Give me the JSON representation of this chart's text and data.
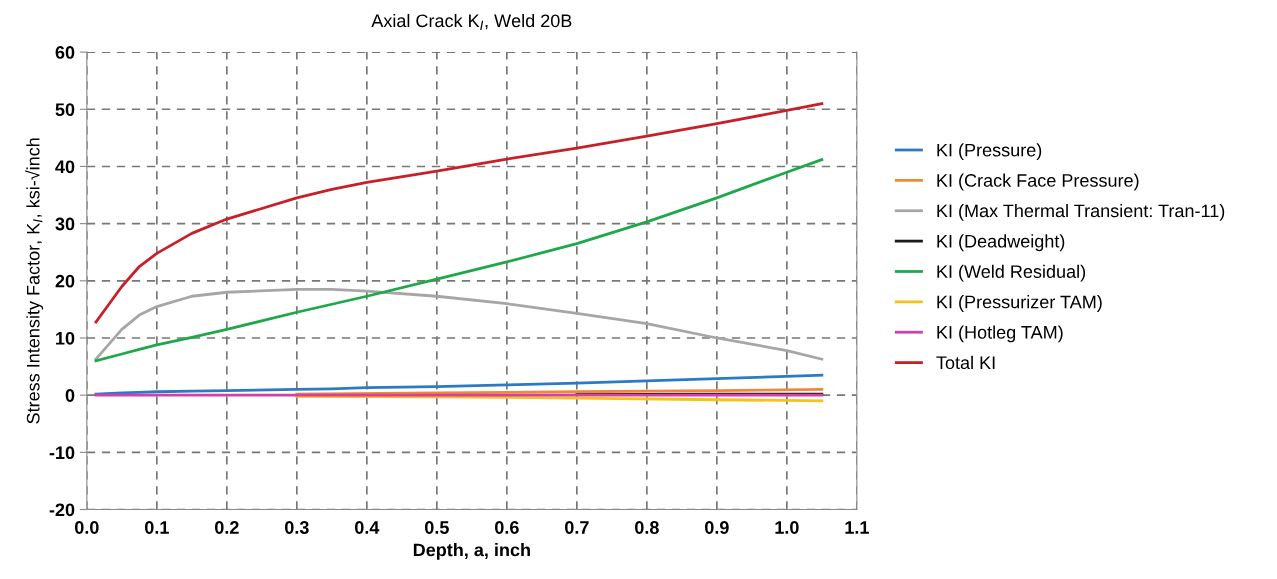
{
  "chart_data": {
    "type": "line",
    "title": "Axial Crack K$_{I}$, Weld 20B",
    "xlabel": "Depth, a, inch",
    "ylabel": "Stress Intensity Factor, K$_{I}$, ksi-√inch",
    "x": [
      0.013,
      0.05,
      0.075,
      0.1,
      0.15,
      0.2,
      0.3,
      0.35,
      0.4,
      0.5,
      0.6,
      0.7,
      0.8,
      0.9,
      1.0,
      1.05
    ],
    "series": [
      {
        "name": "KI (Pressure)",
        "color": "#2a7bc4",
        "values": [
          0.2,
          0.4,
          0.5,
          0.6,
          0.7,
          0.8,
          1.0,
          1.1,
          1.3,
          1.5,
          1.8,
          2.1,
          2.5,
          2.9,
          3.3,
          3.5
        ]
      },
      {
        "name": "KI (Crack Face Pressure)",
        "color": "#f0883a",
        "x": [
          0.3,
          0.5,
          0.7,
          0.9,
          1.05
        ],
        "values": [
          0.2,
          0.4,
          0.6,
          0.8,
          1.0
        ]
      },
      {
        "name": "KI (Max Thermal Transient: Tran-11)",
        "color": "#a6a6a6",
        "values": [
          6.3,
          11.5,
          14.0,
          15.5,
          17.3,
          18.0,
          18.5,
          18.5,
          18.2,
          17.3,
          16.0,
          14.3,
          12.5,
          10.0,
          7.8,
          6.3
        ]
      },
      {
        "name": "KI (Deadweight)",
        "color": "#1a1a1a",
        "x": [
          0.7,
          0.9,
          1.05
        ],
        "values": [
          0.1,
          0.2,
          0.2
        ]
      },
      {
        "name": "KI (Weld Residual)",
        "color": "#1ea84a",
        "values": [
          6.0,
          7.2,
          8.0,
          8.8,
          10.1,
          11.5,
          14.5,
          15.9,
          17.3,
          20.3,
          23.3,
          26.5,
          30.3,
          34.5,
          39.0,
          41.2
        ]
      },
      {
        "name": "KI (Pressurizer TAM)",
        "color": "#f5c21a",
        "x": [
          0.3,
          0.5,
          0.7,
          0.9,
          1.05
        ],
        "values": [
          -0.2,
          -0.3,
          -0.5,
          -0.8,
          -1.0
        ]
      },
      {
        "name": "KI (Hotleg TAM)",
        "color": "#d63faa",
        "values": [
          0.0,
          0.0,
          0.0,
          0.0,
          0.0,
          0.0,
          0.0,
          0.0,
          0.0,
          0.0,
          0.0,
          0.0,
          0.0,
          0.0,
          0.0,
          0.0
        ]
      },
      {
        "name": "Total KI",
        "color": "#c8202a",
        "values": [
          12.8,
          19.0,
          22.5,
          24.8,
          28.3,
          30.8,
          34.5,
          36.0,
          37.2,
          39.2,
          41.3,
          43.2,
          45.3,
          47.5,
          49.8,
          51.0
        ]
      }
    ],
    "xlim": [
      0,
      1.1
    ],
    "ylim": [
      -20,
      60
    ],
    "xticks": [
      {
        "value": 0,
        "label": "0.0"
      },
      0.1,
      0.2,
      0.3,
      0.4,
      0.5,
      0.6,
      0.7,
      0.8,
      0.9,
      {
        "value": 1,
        "label": "1.0"
      },
      1.1
    ],
    "yticks": [
      -20,
      -10,
      0,
      10,
      20,
      30,
      40,
      50,
      60
    ],
    "grid": true,
    "legend": "right",
    "marker": "none",
    "line_style": "solid"
  }
}
